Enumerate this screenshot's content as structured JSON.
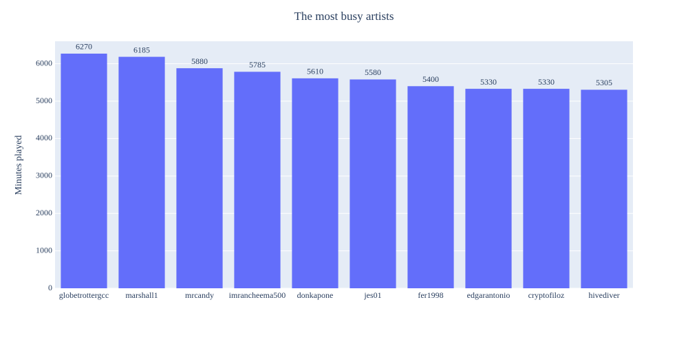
{
  "chart_data": {
    "type": "bar",
    "title": "The most busy artists",
    "y_label": "Minutes played",
    "categories": [
      "globetrottergcc",
      "marshall1",
      "mrcandy",
      "imrancheema500",
      "donkapone",
      "jes01",
      "fer1998",
      "edgarantonio",
      "cryptofiloz",
      "hivediver"
    ],
    "values": [
      6270,
      6185,
      5880,
      5785,
      5610,
      5580,
      5400,
      5330,
      5330,
      5305
    ],
    "color": "#636efa",
    "ylim": [
      0,
      6600
    ],
    "yticks": [
      0,
      1000,
      2000,
      3000,
      4000,
      5000,
      6000
    ],
    "grid": true
  }
}
